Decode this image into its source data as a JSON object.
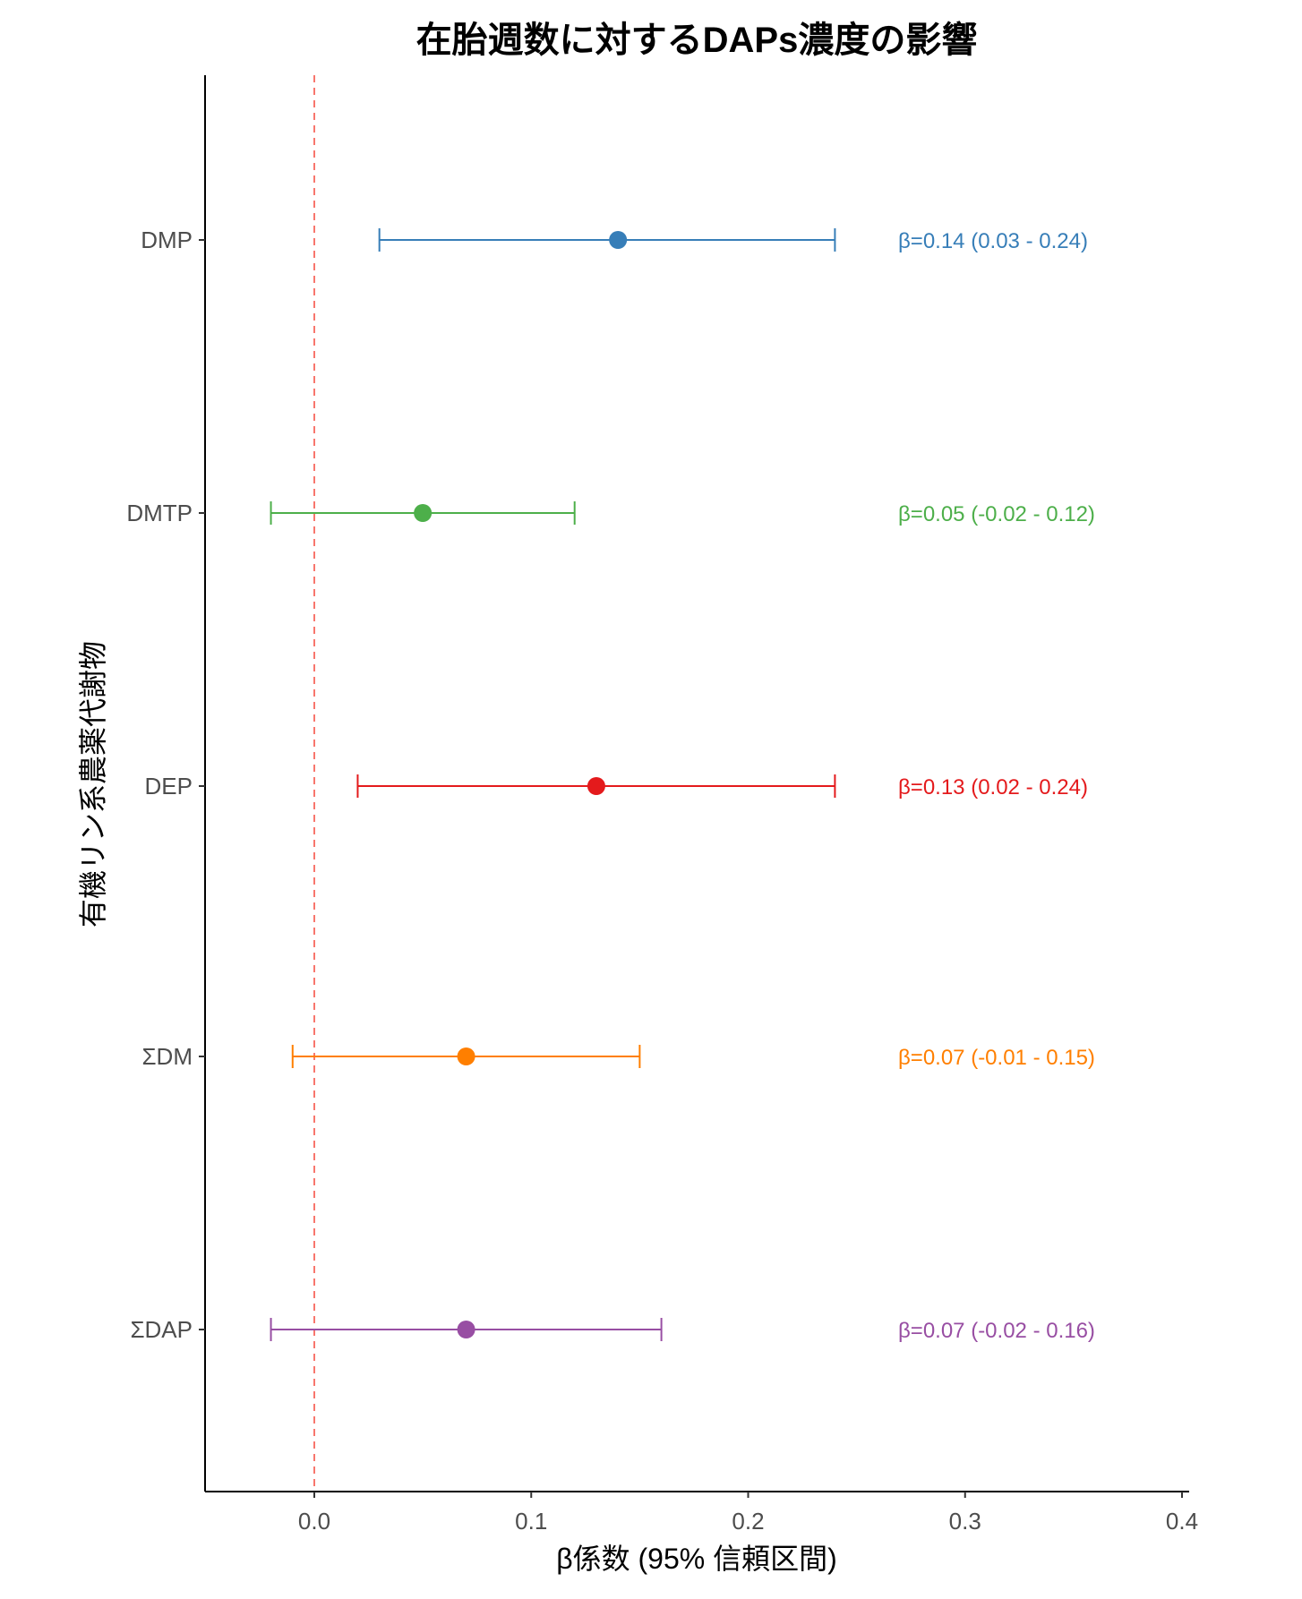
{
  "chart_data": {
    "type": "forest",
    "title": "在胎週数に対するDAPs濃度の影響",
    "xlabel": "β係数 (95% 信頼区間)",
    "ylabel": "有機リン系農薬代謝物",
    "xlim": [
      -0.05,
      0.4
    ],
    "xticks": [
      "0.0",
      "0.1",
      "0.2",
      "0.3",
      "0.4"
    ],
    "xtick_values": [
      0,
      0.1,
      0.2,
      0.3,
      0.4
    ],
    "reference_line": {
      "x": 0,
      "style": "dashed",
      "color": "#F8766D"
    },
    "grid": false,
    "items": [
      {
        "label": "DMP",
        "estimate": 0.14,
        "lower": 0.03,
        "upper": 0.24,
        "color": "#377EB8",
        "annotation": "β=0.14 (0.03 - 0.24)"
      },
      {
        "label": "DMTP",
        "estimate": 0.05,
        "lower": -0.02,
        "upper": 0.12,
        "color": "#4DAF4A",
        "annotation": "β=0.05 (-0.02 - 0.12)"
      },
      {
        "label": "DEP",
        "estimate": 0.13,
        "lower": 0.02,
        "upper": 0.24,
        "color": "#E41A1C",
        "annotation": "β=0.13 (0.02 - 0.24)"
      },
      {
        "label": "ΣDM",
        "estimate": 0.07,
        "lower": -0.01,
        "upper": 0.15,
        "color": "#FF7F00",
        "annotation": "β=0.07 (-0.01 - 0.15)"
      },
      {
        "label": "ΣDAP",
        "estimate": 0.07,
        "lower": -0.02,
        "upper": 0.16,
        "color": "#984EA3",
        "annotation": "β=0.07 (-0.02 - 0.16)"
      }
    ]
  }
}
